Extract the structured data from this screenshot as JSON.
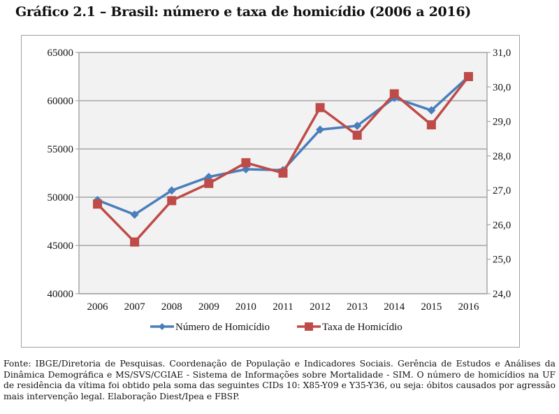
{
  "title": "Gráfico 2.1 – Brasil: número e taxa de homicídio (2006 a 2016)",
  "footer": "Fonte: IBGE/Diretoria de Pesquisas. Coordenação de População e Indicadores Sociais. Gerência de Estudos e Análises da Dinâmica Demográfica e MS/SVS/CGIAE - Sistema de Informações sobre Mortalidade - SIM. O número de homicídios na UF de residência da vítima foi obtido pela soma das seguintes CIDs 10: X85-Y09 e Y35-Y36, ou seja: óbitos causados por agressão mais intervenção legal. Elaboração Diest/Ipea e FBSP.",
  "chart_data": {
    "type": "line",
    "title": "Brasil: número e taxa de homicídio (2006 a 2016)",
    "x": [
      "2006",
      "2007",
      "2008",
      "2009",
      "2010",
      "2011",
      "2012",
      "2013",
      "2014",
      "2015",
      "2016"
    ],
    "y_left": {
      "ylim": [
        40000,
        65000
      ],
      "ticks": [
        40000,
        45000,
        50000,
        55000,
        60000,
        65000
      ],
      "tick_labels": [
        "40000",
        "45000",
        "50000",
        "55000",
        "60000",
        "65000"
      ]
    },
    "y_right": {
      "ylim": [
        24.0,
        31.0
      ],
      "ticks": [
        24,
        25,
        26,
        27,
        28,
        29,
        30,
        31
      ],
      "tick_labels": [
        "24,0",
        "25,0",
        "26,0",
        "27,0",
        "28,0",
        "29,0",
        "30,0",
        "31,0"
      ]
    },
    "grid": true,
    "legend_position": "bottom",
    "series": [
      {
        "name": "Número de Homicídio",
        "axis": "left",
        "color": "#4a7ebb",
        "marker": "diamond",
        "values": [
          49700,
          48200,
          50700,
          52100,
          52900,
          52800,
          57000,
          57400,
          60300,
          59000,
          62500
        ]
      },
      {
        "name": "Taxa de Homicídio",
        "axis": "right",
        "color": "#be4b48",
        "marker": "square",
        "values": [
          26.6,
          25.5,
          26.7,
          27.2,
          27.8,
          27.5,
          29.4,
          28.6,
          29.8,
          28.9,
          30.3
        ]
      }
    ]
  }
}
